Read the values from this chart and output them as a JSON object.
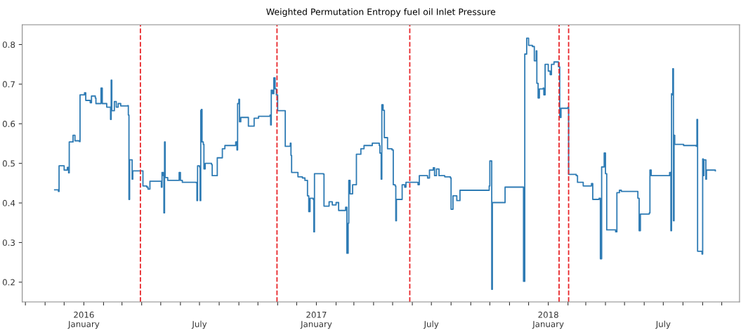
{
  "chart_data": {
    "type": "step",
    "title": "Weighted Permutation Entropy fuel oil Inlet Pressure",
    "xlim": [
      "2015-09-26",
      "2018-10-29"
    ],
    "ylim": [
      0.15,
      0.85
    ],
    "yticks": [
      0.2,
      0.3,
      0.4,
      0.5,
      0.6,
      0.7,
      0.8
    ],
    "xticks": [
      {
        "value": "2015-10-01",
        "label": null
      },
      {
        "value": "2015-11-01",
        "label": null
      },
      {
        "value": "2015-12-01",
        "label": null
      },
      {
        "value": "2016-01-01",
        "label": "2016\nJanuary"
      },
      {
        "value": "2016-02-01",
        "label": null
      },
      {
        "value": "2016-03-01",
        "label": null
      },
      {
        "value": "2016-04-01",
        "label": null
      },
      {
        "value": "2016-05-01",
        "label": null
      },
      {
        "value": "2016-06-01",
        "label": null
      },
      {
        "value": "2016-07-01",
        "label": "July"
      },
      {
        "value": "2016-08-01",
        "label": null
      },
      {
        "value": "2016-09-01",
        "label": null
      },
      {
        "value": "2016-10-01",
        "label": null
      },
      {
        "value": "2016-11-01",
        "label": null
      },
      {
        "value": "2016-12-01",
        "label": null
      },
      {
        "value": "2017-01-01",
        "label": "2017\nJanuary"
      },
      {
        "value": "2017-02-01",
        "label": null
      },
      {
        "value": "2017-03-01",
        "label": null
      },
      {
        "value": "2017-04-01",
        "label": null
      },
      {
        "value": "2017-05-01",
        "label": null
      },
      {
        "value": "2017-06-01",
        "label": null
      },
      {
        "value": "2017-07-01",
        "label": "July"
      },
      {
        "value": "2017-08-01",
        "label": null
      },
      {
        "value": "2017-09-01",
        "label": null
      },
      {
        "value": "2017-10-01",
        "label": null
      },
      {
        "value": "2017-11-01",
        "label": null
      },
      {
        "value": "2017-12-01",
        "label": null
      },
      {
        "value": "2018-01-01",
        "label": "2018\nJanuary"
      },
      {
        "value": "2018-02-01",
        "label": null
      },
      {
        "value": "2018-03-01",
        "label": null
      },
      {
        "value": "2018-04-01",
        "label": null
      },
      {
        "value": "2018-05-01",
        "label": null
      },
      {
        "value": "2018-06-01",
        "label": null
      },
      {
        "value": "2018-07-01",
        "label": "July"
      },
      {
        "value": "2018-08-01",
        "label": null
      },
      {
        "value": "2018-09-01",
        "label": null
      },
      {
        "value": "2018-10-01",
        "label": null
      }
    ],
    "grid": false,
    "marker": "none",
    "line_style": "solid",
    "ref_lines": [
      {
        "axis": "x",
        "value": "2016-03-30",
        "label": null,
        "color": "#e8262a",
        "line_style": "dashed"
      },
      {
        "axis": "x",
        "value": "2016-10-31",
        "label": null,
        "color": "#e8262a",
        "line_style": "dashed"
      },
      {
        "axis": "x",
        "value": "2017-05-28",
        "label": null,
        "color": "#e8262a",
        "line_style": "dashed"
      },
      {
        "axis": "x",
        "value": "2018-01-18",
        "label": null,
        "color": "#e8262a",
        "line_style": "dashed"
      },
      {
        "axis": "x",
        "value": "2018-02-02",
        "label": null,
        "color": "#e8262a",
        "line_style": "dashed"
      }
    ],
    "series": [
      {
        "color": "#2e7bb4",
        "x": [
          "2015-11-16",
          "2015-11-22",
          "2015-11-23",
          "2015-11-30",
          "2015-12-01",
          "2015-12-06",
          "2015-12-08",
          "2015-12-09",
          "2015-12-15",
          "2015-12-18",
          "2015-12-25",
          "2015-12-26",
          "2016-01-02",
          "2016-01-04",
          "2016-01-11",
          "2016-01-13",
          "2016-01-19",
          "2016-01-20",
          "2016-01-28",
          "2016-01-30",
          "2016-02-06",
          "2016-02-12",
          "2016-02-13",
          "2016-02-14",
          "2016-02-18",
          "2016-02-21",
          "2016-02-24",
          "2016-02-28",
          "2016-03-10",
          "2016-03-11",
          "2016-03-12",
          "2016-03-13",
          "2016-03-16",
          "2016-03-17",
          "2016-03-18",
          "2016-03-30",
          "2016-04-02",
          "2016-04-03",
          "2016-04-09",
          "2016-04-11",
          "2016-04-14",
          "2016-05-01",
          "2016-05-02",
          "2016-05-03",
          "2016-05-05",
          "2016-05-06",
          "2016-05-07",
          "2016-05-08",
          "2016-05-11",
          "2016-05-12",
          "2016-05-28",
          "2016-05-30",
          "2016-06-01",
          "2016-06-04",
          "2016-06-26",
          "2016-06-27",
          "2016-06-28",
          "2016-07-01",
          "2016-07-02",
          "2016-07-03",
          "2016-07-04",
          "2016-07-05",
          "2016-07-07",
          "2016-07-08",
          "2016-07-10",
          "2016-07-20",
          "2016-07-21",
          "2016-07-27",
          "2016-07-29",
          "2016-08-04",
          "2016-08-06",
          "2016-08-10",
          "2016-08-25",
          "2016-08-27",
          "2016-08-29",
          "2016-08-30",
          "2016-09-01",
          "2016-09-02",
          "2016-09-04",
          "2016-09-16",
          "2016-09-22",
          "2016-09-25",
          "2016-10-02",
          "2016-10-20",
          "2016-10-21",
          "2016-10-22",
          "2016-10-24",
          "2016-10-26",
          "2016-10-28",
          "2016-10-30",
          "2016-11-01",
          "2016-11-12",
          "2016-11-13",
          "2016-11-21",
          "2016-11-22",
          "2016-11-23",
          "2016-12-01",
          "2016-12-03",
          "2016-12-10",
          "2016-12-14",
          "2016-12-18",
          "2016-12-20",
          "2016-12-22",
          "2016-12-27",
          "2016-12-28",
          "2016-12-29",
          "2017-01-12",
          "2017-01-13",
          "2017-01-21",
          "2017-01-26",
          "2017-02-01",
          "2017-02-05",
          "2017-02-16",
          "2017-02-18",
          "2017-02-20",
          "2017-02-21",
          "2017-02-23",
          "2017-02-27",
          "2017-03-04",
          "2017-03-05",
          "2017-03-12",
          "2017-03-17",
          "2017-03-30",
          "2017-04-10",
          "2017-04-11",
          "2017-04-13",
          "2017-04-14",
          "2017-04-16",
          "2017-04-18",
          "2017-04-23",
          "2017-04-30",
          "2017-05-02",
          "2017-05-05",
          "2017-05-06",
          "2017-05-07",
          "2017-05-14",
          "2017-05-16",
          "2017-05-20",
          "2017-05-22",
          "2017-06-10",
          "2017-06-12",
          "2017-06-25",
          "2017-06-28",
          "2017-07-04",
          "2017-07-06",
          "2017-07-09",
          "2017-07-13",
          "2017-07-22",
          "2017-07-31",
          "2017-08-01",
          "2017-08-04",
          "2017-08-10",
          "2017-08-15",
          "2017-09-30",
          "2017-10-01",
          "2017-10-04",
          "2017-10-05",
          "2017-10-24",
          "2017-10-25",
          "2017-11-22",
          "2017-11-23",
          "2017-11-25",
          "2017-11-28",
          "2017-12-01",
          "2017-12-07",
          "2017-12-10",
          "2017-12-13",
          "2017-12-14",
          "2017-12-16",
          "2017-12-18",
          "2017-12-24",
          "2017-12-25",
          "2017-12-27",
          "2018-01-01",
          "2018-01-04",
          "2018-01-06",
          "2018-01-10",
          "2018-01-17",
          "2018-01-19",
          "2018-01-21",
          "2018-02-01",
          "2018-02-02",
          "2018-02-14",
          "2018-02-16",
          "2018-02-25",
          "2018-03-10",
          "2018-03-12",
          "2018-03-22",
          "2018-03-24",
          "2018-03-26",
          "2018-03-30",
          "2018-04-01",
          "2018-04-03",
          "2018-04-15",
          "2018-04-17",
          "2018-04-19",
          "2018-04-23",
          "2018-04-26",
          "2018-05-18",
          "2018-05-22",
          "2018-05-24",
          "2018-05-26",
          "2018-06-09",
          "2018-06-10",
          "2018-06-12",
          "2018-07-09",
          "2018-07-11",
          "2018-07-13",
          "2018-07-14",
          "2018-07-15",
          "2018-07-16",
          "2018-07-17",
          "2018-07-18",
          "2018-07-19",
          "2018-08-02",
          "2018-08-22",
          "2018-08-23",
          "2018-08-24",
          "2018-08-31",
          "2018-09-01",
          "2018-09-02",
          "2018-09-03",
          "2018-09-06",
          "2018-09-07",
          "2018-09-21"
        ],
        "values": [
          0.433,
          0.429,
          0.494,
          0.494,
          0.483,
          0.49,
          0.476,
          0.554,
          0.571,
          0.557,
          0.555,
          0.673,
          0.678,
          0.659,
          0.653,
          0.67,
          0.665,
          0.651,
          0.69,
          0.651,
          0.642,
          0.611,
          0.71,
          0.633,
          0.656,
          0.642,
          0.651,
          0.645,
          0.646,
          0.622,
          0.409,
          0.509,
          0.509,
          0.46,
          0.481,
          0.481,
          0.481,
          0.443,
          0.44,
          0.435,
          0.455,
          0.455,
          0.44,
          0.477,
          0.469,
          0.375,
          0.554,
          0.464,
          0.464,
          0.457,
          0.457,
          0.477,
          0.457,
          0.452,
          0.451,
          0.406,
          0.494,
          0.491,
          0.406,
          0.634,
          0.636,
          0.554,
          0.548,
          0.486,
          0.5,
          0.497,
          0.469,
          0.469,
          0.514,
          0.514,
          0.537,
          0.545,
          0.545,
          0.554,
          0.534,
          0.651,
          0.662,
          0.605,
          0.616,
          0.594,
          0.594,
          0.614,
          0.619,
          0.622,
          0.597,
          0.685,
          0.676,
          0.716,
          0.688,
          0.673,
          0.633,
          0.633,
          0.543,
          0.551,
          0.52,
          0.477,
          0.477,
          0.466,
          0.463,
          0.457,
          0.418,
          0.378,
          0.412,
          0.409,
          0.327,
          0.474,
          0.473,
          0.392,
          0.403,
          0.395,
          0.401,
          0.381,
          0.389,
          0.273,
          0.349,
          0.457,
          0.423,
          0.446,
          0.446,
          0.523,
          0.537,
          0.545,
          0.551,
          0.545,
          0.526,
          0.46,
          0.648,
          0.634,
          0.565,
          0.537,
          0.534,
          0.446,
          0.443,
          0.355,
          0.409,
          0.409,
          0.446,
          0.44,
          0.452,
          0.446,
          0.469,
          0.463,
          0.483,
          0.489,
          0.469,
          0.486,
          0.469,
          0.466,
          0.463,
          0.384,
          0.418,
          0.406,
          0.432,
          0.443,
          0.506,
          0.182,
          0.401,
          0.401,
          0.44,
          0.44,
          0.202,
          0.776,
          0.816,
          0.798,
          0.795,
          0.759,
          0.784,
          0.702,
          0.665,
          0.688,
          0.69,
          0.673,
          0.75,
          0.733,
          0.724,
          0.75,
          0.756,
          0.744,
          0.616,
          0.639,
          0.642,
          0.472,
          0.469,
          0.452,
          0.443,
          0.449,
          0.409,
          0.412,
          0.259,
          0.491,
          0.526,
          0.474,
          0.332,
          0.332,
          0.327,
          0.426,
          0.432,
          0.429,
          0.429,
          0.412,
          0.33,
          0.372,
          0.375,
          0.483,
          0.469,
          0.469,
          0.477,
          0.33,
          0.676,
          0.673,
          0.739,
          0.355,
          0.571,
          0.548,
          0.545,
          0.543,
          0.611,
          0.278,
          0.271,
          0.511,
          0.469,
          0.509,
          0.46,
          0.483,
          0.481
        ]
      }
    ]
  }
}
